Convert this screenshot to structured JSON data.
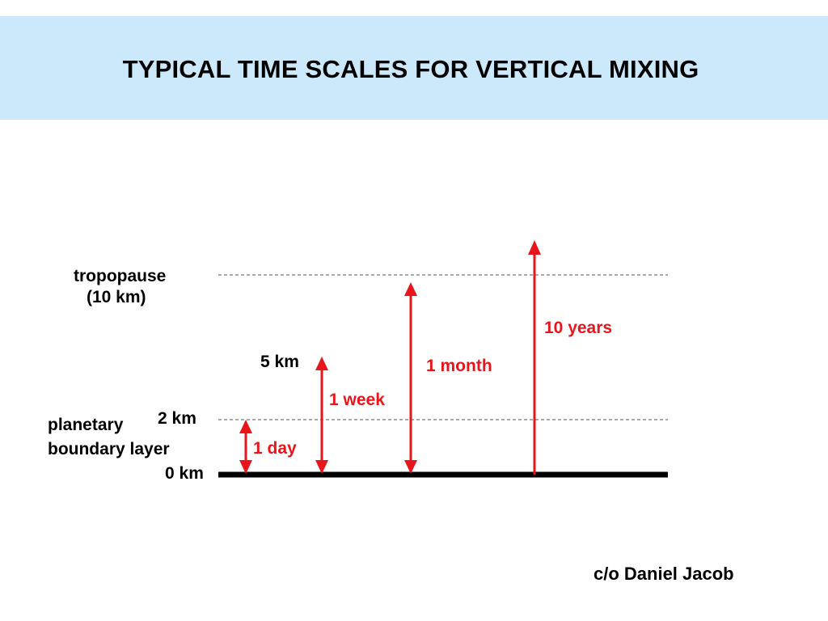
{
  "slide": {
    "title": "TYPICAL TIME SCALES FOR VERTICAL MIXING",
    "credit": "c/o Daniel Jacob"
  },
  "labels": {
    "tropopause": "tropopause",
    "tropopause_height": "(10 km)",
    "five_km": "5 km",
    "two_km": "2 km",
    "zero_km": "0 km",
    "pbl_line1": "planetary",
    "pbl_line2": "boundary layer"
  },
  "time_scales": [
    {
      "label": "1 day",
      "from_km": 0,
      "to_km": 2
    },
    {
      "label": "1 week",
      "from_km": 0,
      "to_km": 5
    },
    {
      "label": "1 month",
      "from_km": 0,
      "to_km": 10
    },
    {
      "label": "10 years",
      "from_km": 0,
      "to_km": 12
    }
  ],
  "colors": {
    "header_bg": "#cce9fb",
    "arrow": "#e8161b",
    "ground": "#000000",
    "dashed_line": "#555555"
  }
}
